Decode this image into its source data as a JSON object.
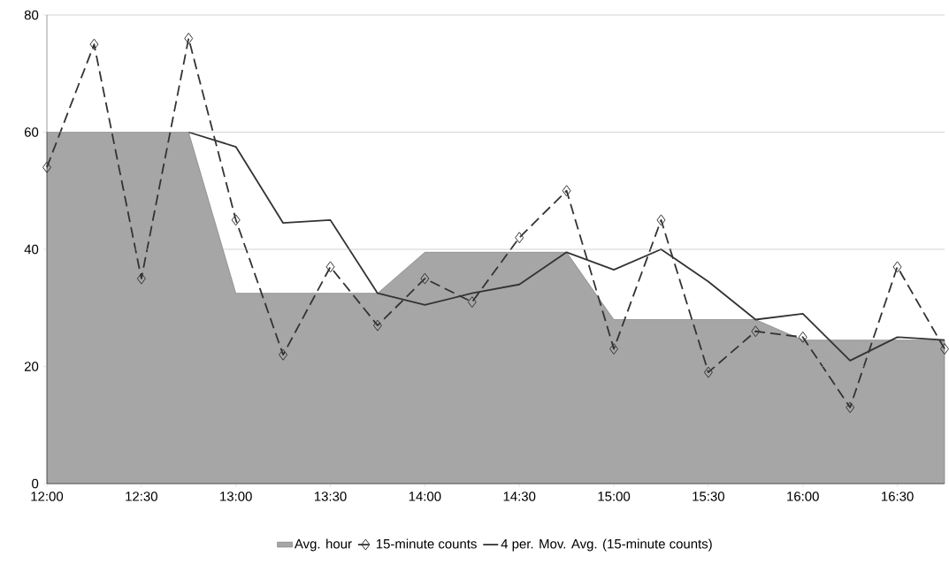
{
  "chart_data": {
    "type": "line",
    "categories": [
      "12:00",
      null,
      "12:30",
      null,
      "13:00",
      null,
      "13:30",
      null,
      "14:00",
      null,
      "14:30",
      null,
      "15:00",
      null,
      "15:30",
      null,
      "16:00",
      null,
      "16:30",
      null
    ],
    "series": [
      {
        "name": "Avg. hour",
        "type": "area",
        "color": "#a6a6a6",
        "values": [
          60,
          60,
          60,
          60,
          32.5,
          32.5,
          32.5,
          32.5,
          39.5,
          39.5,
          39.5,
          39.5,
          28,
          28,
          28,
          28,
          24.5,
          24.5,
          24.5,
          24.5
        ]
      },
      {
        "name": "15-minute counts",
        "color": "#333333",
        "marker": "diamond",
        "line_style": "dashed",
        "values": [
          54,
          75,
          35,
          76,
          45,
          22,
          37,
          27,
          35,
          31,
          42,
          50,
          23,
          45,
          19,
          26,
          25,
          13,
          37,
          23
        ]
      },
      {
        "name": "4 per. Mov. Avg. (15-minute counts)",
        "color": "#333333",
        "marker": "none",
        "line_style": "solid",
        "values": [
          null,
          null,
          null,
          60,
          57.5,
          44.5,
          45,
          32.5,
          30.5,
          32.5,
          34,
          39.5,
          36.5,
          40,
          34.5,
          28,
          29,
          21,
          25,
          24.5
        ]
      }
    ],
    "ylim": [
      0,
      80
    ],
    "yticks": [
      0,
      20,
      40,
      60,
      80
    ],
    "grid": "y",
    "legend": "bottom"
  }
}
